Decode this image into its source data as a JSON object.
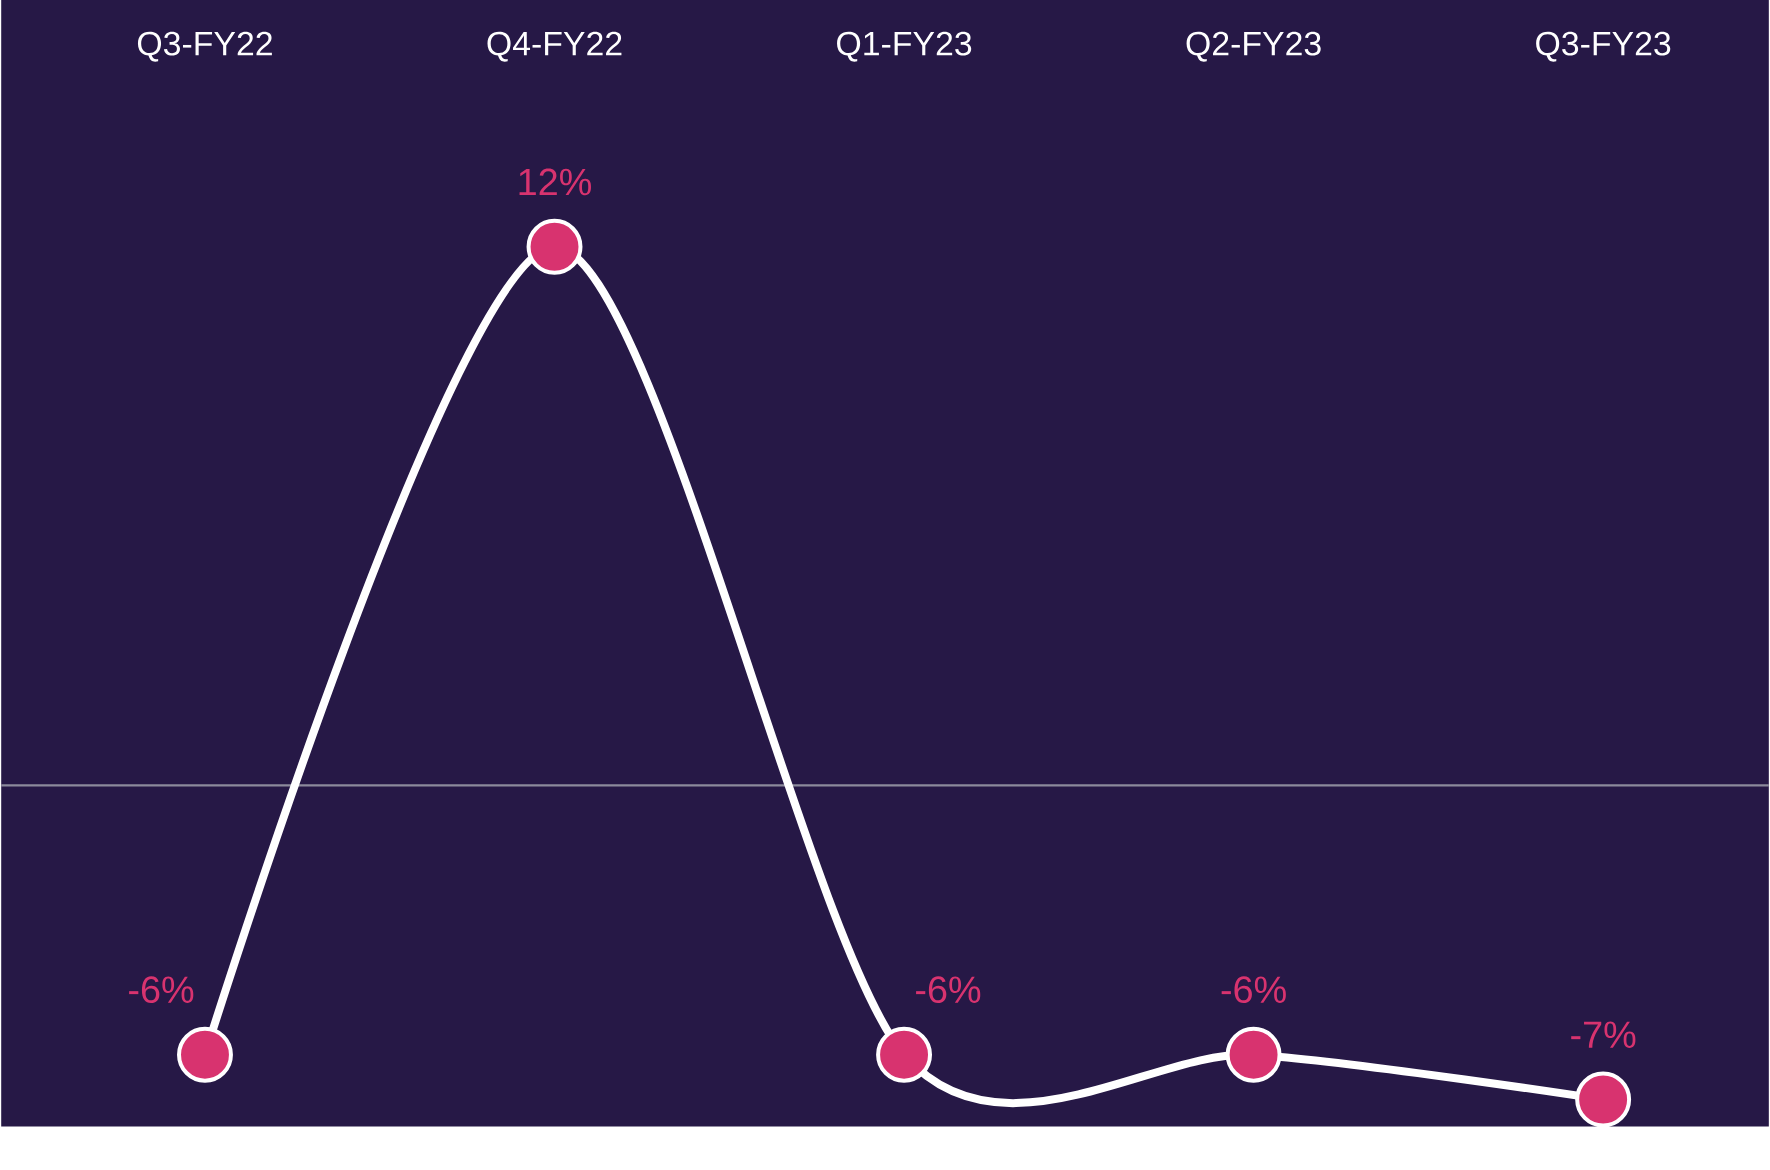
{
  "chart_data": {
    "type": "line",
    "categories": [
      "Q3-FY22",
      "Q4-FY22",
      "Q1-FY23",
      "Q2-FY23",
      "Q3-FY23"
    ],
    "series": [
      {
        "color": "#d8336f",
        "values": [
          -6,
          12,
          -6,
          -6,
          -7
        ],
        "value_labels": [
          "-6%",
          "12%",
          "-6%",
          "-6%",
          "-7%"
        ]
      }
    ],
    "ylim": [
      -7.6,
      17.5
    ],
    "marker": "circle",
    "line_style": "solid",
    "grid": false,
    "ref_lines": [
      {
        "axis": "y",
        "value": 0,
        "color": "#8c8a9c"
      }
    ]
  }
}
